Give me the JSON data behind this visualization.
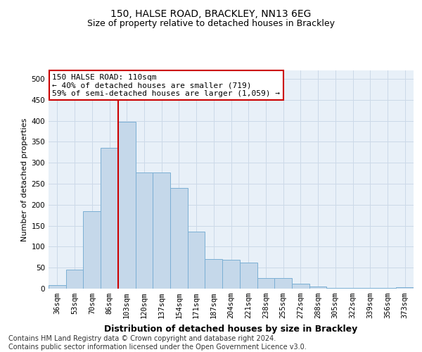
{
  "title1": "150, HALSE ROAD, BRACKLEY, NN13 6EG",
  "title2": "Size of property relative to detached houses in Brackley",
  "xlabel": "Distribution of detached houses by size in Brackley",
  "ylabel": "Number of detached properties",
  "footer": "Contains HM Land Registry data © Crown copyright and database right 2024.\nContains public sector information licensed under the Open Government Licence v3.0.",
  "categories": [
    "36sqm",
    "53sqm",
    "70sqm",
    "86sqm",
    "103sqm",
    "120sqm",
    "137sqm",
    "154sqm",
    "171sqm",
    "187sqm",
    "204sqm",
    "221sqm",
    "238sqm",
    "255sqm",
    "272sqm",
    "288sqm",
    "305sqm",
    "322sqm",
    "339sqm",
    "356sqm",
    "373sqm"
  ],
  "values": [
    8,
    46,
    185,
    335,
    398,
    277,
    277,
    240,
    136,
    70,
    68,
    62,
    25,
    25,
    12,
    5,
    2,
    2,
    1,
    1,
    3
  ],
  "bar_color": "#c5d8ea",
  "bar_edge_color": "#7bafd4",
  "vline_x_index": 4,
  "vline_color": "#cc0000",
  "annotation_text": "150 HALSE ROAD: 110sqm\n← 40% of detached houses are smaller (719)\n59% of semi-detached houses are larger (1,059) →",
  "annotation_box_color": "#ffffff",
  "annotation_box_edge_color": "#cc0000",
  "ylim": [
    0,
    520
  ],
  "yticks": [
    0,
    50,
    100,
    150,
    200,
    250,
    300,
    350,
    400,
    450,
    500
  ],
  "grid_color": "#ccd9e8",
  "bg_color": "#e8f0f8",
  "title1_fontsize": 10,
  "title2_fontsize": 9,
  "xlabel_fontsize": 9,
  "ylabel_fontsize": 8,
  "tick_fontsize": 7.5,
  "annot_fontsize": 8,
  "footer_fontsize": 7
}
